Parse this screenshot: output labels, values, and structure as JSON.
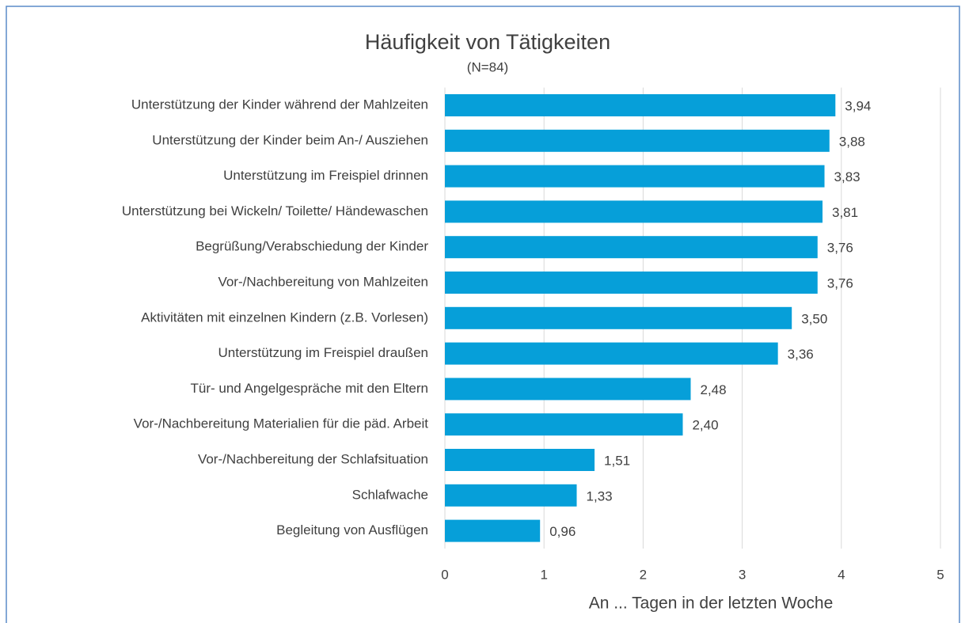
{
  "chart_data": {
    "type": "bar",
    "orientation": "horizontal",
    "title": "Häufigkeit von Tätigkeiten",
    "subtitle": "(N=84)",
    "x_label": "An ... Tagen in der letzten Woche",
    "categories": [
      "Unterstützung der Kinder während der Mahlzeiten",
      "Unterstützung der Kinder beim An-/ Ausziehen",
      "Unterstützung im Freispiel drinnen",
      "Unterstützung bei Wickeln/ Toilette/ Händewaschen",
      "Begrüßung/Verabschiedung der Kinder",
      "Vor-/Nachbereitung von Mahlzeiten",
      "Aktivitäten mit einzelnen Kindern (z.B. Vorlesen)",
      "Unterstützung im Freispiel draußen",
      "Tür- und Angelgespräche mit den Eltern",
      "Vor-/Nachbereitung Materialien für die päd. Arbeit",
      "Vor-/Nachbereitung der Schlafsituation",
      "Schlafwache",
      "Begleitung von Ausflügen"
    ],
    "values": [
      3.94,
      3.88,
      3.83,
      3.81,
      3.76,
      3.76,
      3.5,
      3.36,
      2.48,
      2.4,
      1.51,
      1.33,
      0.96
    ],
    "value_labels": [
      "3,94",
      "3,88",
      "3,83",
      "3,81",
      "3,76",
      "3,76",
      "3,50",
      "3,36",
      "2,48",
      "2,40",
      "1,51",
      "1,33",
      "0,96"
    ],
    "color": "#069fd9",
    "xlim": [
      0,
      5
    ],
    "xticks": [
      0,
      1,
      2,
      3,
      4,
      5
    ],
    "grid": true
  }
}
